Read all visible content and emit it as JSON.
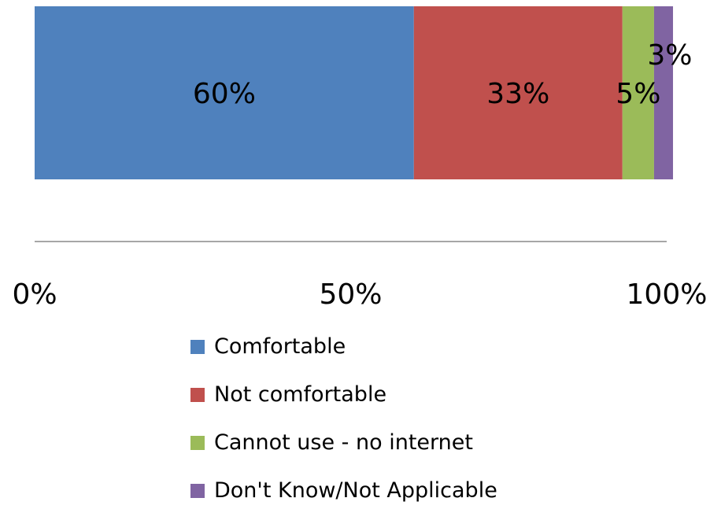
{
  "chart_data": {
    "type": "bar",
    "orientation": "horizontal",
    "stacked": true,
    "title": "",
    "xlabel": "",
    "ylabel": "",
    "xlim": [
      0,
      100
    ],
    "x_ticks": [
      "0%",
      "50%",
      "100%"
    ],
    "grid": false,
    "legend_position": "bottom",
    "series": [
      {
        "name": "Comfortable",
        "value": 60,
        "label": "60%",
        "color": "#4F81BD"
      },
      {
        "name": "Not comfortable",
        "value": 33,
        "label": "33%",
        "color": "#C0504D"
      },
      {
        "name": "Cannot use - no internet",
        "value": 5,
        "label": "5%",
        "color": "#9BBB59"
      },
      {
        "name": "Don't Know/Not Applicable",
        "value": 3,
        "label": "3%",
        "color": "#8064A2"
      }
    ]
  }
}
